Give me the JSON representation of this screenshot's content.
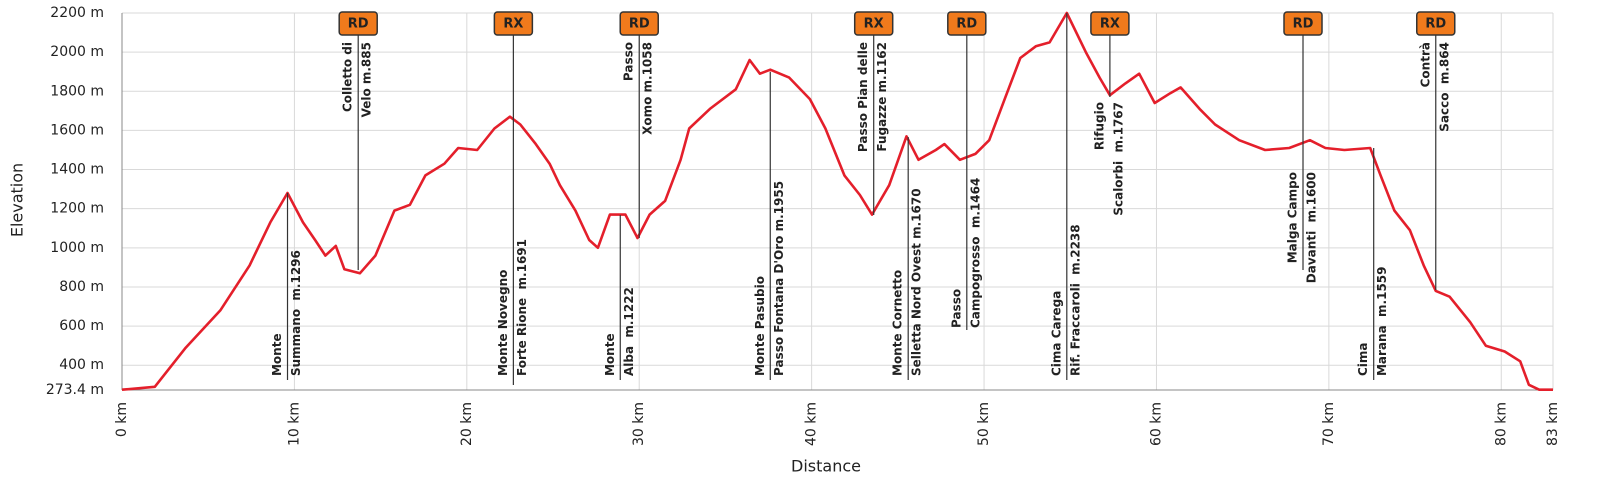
{
  "chart_data": {
    "type": "line",
    "xlabel": "Distance",
    "ylabel": "Elevation",
    "color": "#e41f2b",
    "grid": true,
    "xlim": [
      0,
      83
    ],
    "ylim": [
      273.4,
      2200
    ],
    "xticks": [
      {
        "value": 0,
        "label": "0 km"
      },
      {
        "value": 10,
        "label": "10 km"
      },
      {
        "value": 20,
        "label": "20 km"
      },
      {
        "value": 30,
        "label": "30 km"
      },
      {
        "value": 40,
        "label": "40 km"
      },
      {
        "value": 50,
        "label": "50 km"
      },
      {
        "value": 60,
        "label": "60 km"
      },
      {
        "value": 70,
        "label": "70 km"
      },
      {
        "value": 80,
        "label": "80 km"
      },
      {
        "value": 83,
        "label": "83 km"
      }
    ],
    "yticks": [
      {
        "value": 273.4,
        "label": "273.4 m"
      },
      {
        "value": 400,
        "label": "400 m"
      },
      {
        "value": 600,
        "label": "600 m"
      },
      {
        "value": 800,
        "label": "800 m"
      },
      {
        "value": 1000,
        "label": "1000 m"
      },
      {
        "value": 1200,
        "label": "1200 m"
      },
      {
        "value": 1400,
        "label": "1400 m"
      },
      {
        "value": 1600,
        "label": "1600 m"
      },
      {
        "value": 1800,
        "label": "1800 m"
      },
      {
        "value": 2000,
        "label": "2000 m"
      },
      {
        "value": 2200,
        "label": "2200 m"
      }
    ],
    "x": [
      0,
      1.9,
      3.7,
      5.7,
      7.4,
      8.6,
      9.6,
      10.5,
      11.2,
      11.8,
      12.4,
      12.9,
      13.8,
      14.7,
      15.8,
      16.7,
      17.6,
      18.7,
      19.5,
      20.6,
      21.6,
      22.5,
      23.1,
      24.0,
      24.8,
      25.4,
      26.3,
      27.1,
      27.6,
      28.3,
      29.2,
      29.9,
      30.6,
      31.5,
      32.4,
      32.9,
      34.1,
      35.6,
      36.4,
      37.0,
      37.6,
      38.7,
      39.9,
      40.8,
      41.9,
      42.8,
      43.5,
      44.5,
      45.5,
      46.2,
      47.2,
      47.7,
      48.6,
      49.5,
      50.3,
      51.2,
      52.1,
      53.0,
      53.8,
      54.8,
      55.9,
      56.7,
      57.3,
      58.2,
      59.0,
      59.9,
      60.8,
      61.4,
      62.5,
      63.4,
      64.8,
      66.3,
      67.7,
      68.9,
      69.8,
      70.9,
      72.4,
      73.0,
      73.8,
      74.7,
      75.5,
      76.2,
      77.0,
      78.2,
      79.1,
      80.2,
      81.1,
      81.6,
      82.2,
      83
    ],
    "values": [
      275,
      290,
      490,
      680,
      910,
      1130,
      1280,
      1130,
      1040,
      960,
      1010,
      890,
      870,
      960,
      1190,
      1220,
      1370,
      1430,
      1510,
      1500,
      1610,
      1670,
      1630,
      1530,
      1430,
      1320,
      1190,
      1040,
      1000,
      1170,
      1170,
      1050,
      1170,
      1240,
      1450,
      1610,
      1710,
      1810,
      1960,
      1890,
      1910,
      1870,
      1760,
      1610,
      1370,
      1270,
      1170,
      1320,
      1570,
      1450,
      1500,
      1530,
      1450,
      1480,
      1550,
      1760,
      1970,
      2030,
      2050,
      2200,
      2000,
      1870,
      1780,
      1840,
      1890,
      1740,
      1790,
      1820,
      1710,
      1630,
      1550,
      1500,
      1510,
      1550,
      1510,
      1500,
      1510,
      1370,
      1190,
      1090,
      910,
      780,
      750,
      620,
      500,
      470,
      420,
      300,
      275,
      275
    ],
    "annotations": [
      {
        "x": 9.6,
        "lines": [
          "Monte",
          "Summano  m.1296"
        ]
      },
      {
        "x": 13.7,
        "lines": [
          "Colletto di",
          "Velo m.885"
        ],
        "icon": "RD"
      },
      {
        "x": 22.7,
        "lines": [
          "Monte Novegno",
          "Forte Rione  m.1691"
        ],
        "icon": "RX"
      },
      {
        "x": 28.9,
        "lines": [
          "Monte",
          "Alba  m.1222"
        ]
      },
      {
        "x": 30.0,
        "lines": [
          "Passo",
          "Xomo m.1058"
        ],
        "icon": "RD"
      },
      {
        "x": 37.6,
        "lines": [
          "Monte Pasubio",
          "Passo Fontana D'Oro m.1955"
        ]
      },
      {
        "x": 43.6,
        "lines": [
          "Passo Pian delle",
          "Fugazze m.1162"
        ],
        "icon": "RX"
      },
      {
        "x": 45.6,
        "lines": [
          "Monte Cornetto",
          "Selletta Nord Ovest m.1670"
        ]
      },
      {
        "x": 49.0,
        "lines": [
          "Passo",
          "Campogrosso  m.1464"
        ],
        "icon": "RD"
      },
      {
        "x": 54.8,
        "lines": [
          "Cima Carega",
          "Rif. Fraccaroli  m.2238"
        ]
      },
      {
        "x": 57.3,
        "lines": [
          "Rifugio",
          "Scalorbi  m.1767"
        ],
        "icon": "RX"
      },
      {
        "x": 68.5,
        "lines": [
          "Malga Campo",
          "Davanti  m.1600"
        ],
        "icon": "RD"
      },
      {
        "x": 72.6,
        "lines": [
          "Cima",
          "Marana  m.1559"
        ]
      },
      {
        "x": 76.2,
        "lines": [
          "Contrà",
          "Sacco  m.864"
        ],
        "icon": "RD"
      }
    ]
  }
}
